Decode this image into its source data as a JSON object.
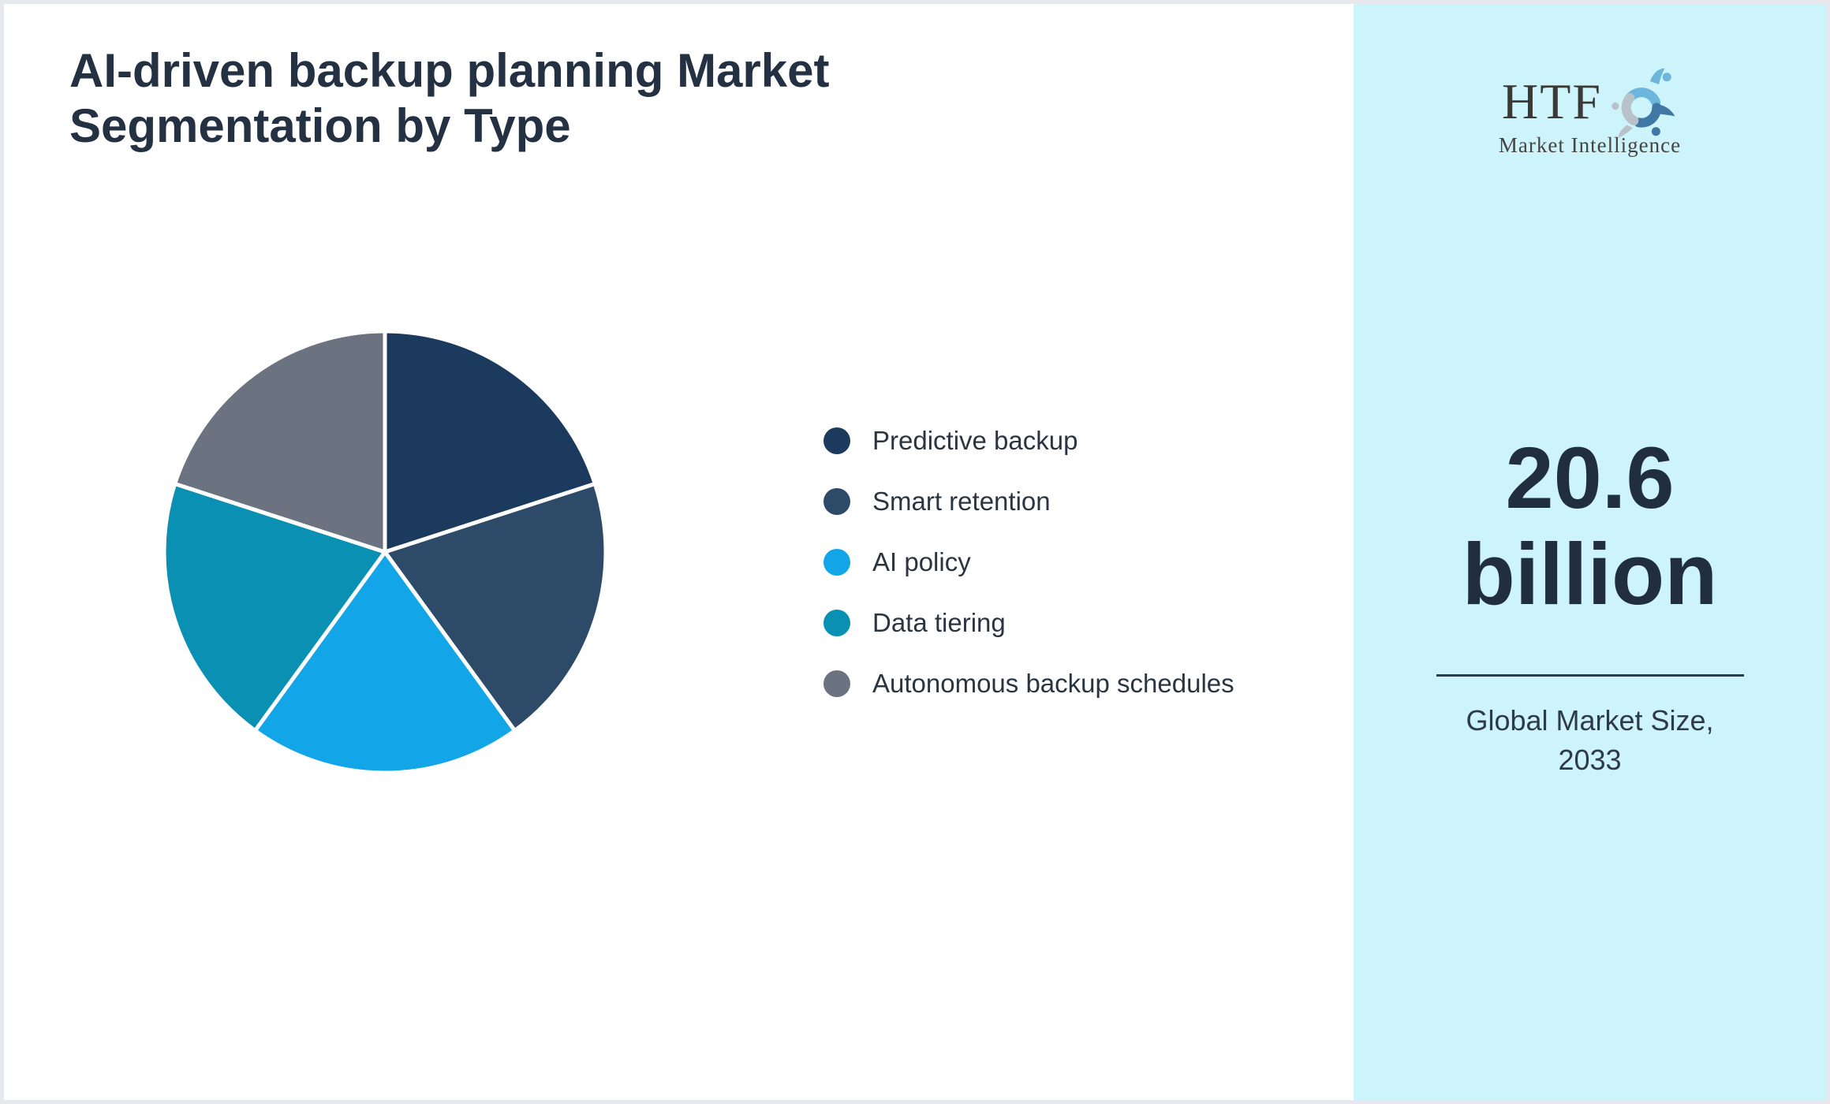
{
  "page": {
    "title_line1": "AI-driven backup planning Market",
    "title_line2": "Segmentation by Type"
  },
  "chart_data": {
    "type": "pie",
    "title": "AI-driven backup planning Market Segmentation by Type",
    "legend_position": "right",
    "start_angle_deg": 0,
    "direction": "clockwise",
    "values_note": "no numeric labels shown; all five slices visually equal (~20% / 72° each)",
    "segments": [
      {
        "label": "Predictive backup",
        "value": 20,
        "color": "#1b3a5e"
      },
      {
        "label": "Smart retention",
        "value": 20,
        "color": "#2d4b68"
      },
      {
        "label": "AI policy",
        "value": 20,
        "color": "#12a5e8"
      },
      {
        "label": "Data tiering",
        "value": 20,
        "color": "#0a90b2"
      },
      {
        "label": "Autonomous backup schedules",
        "value": 20,
        "color": "#6b7280"
      }
    ]
  },
  "sidebar": {
    "logo": {
      "text": "HTF",
      "subtext": "Market Intelligence"
    },
    "market_size_value": "20.6",
    "market_size_unit": "billion",
    "caption_line1": "Global Market Size,",
    "caption_line2": "2033"
  },
  "colors": {
    "title_text": "#243142",
    "legend_text": "#2b3542",
    "sidebar_background": "#cdf3fb",
    "page_border": "#e6e8ed",
    "big_number_text": "#212e3d",
    "separator_line": "#2c3a4a",
    "pie_slice_gap": "#ffffff"
  }
}
